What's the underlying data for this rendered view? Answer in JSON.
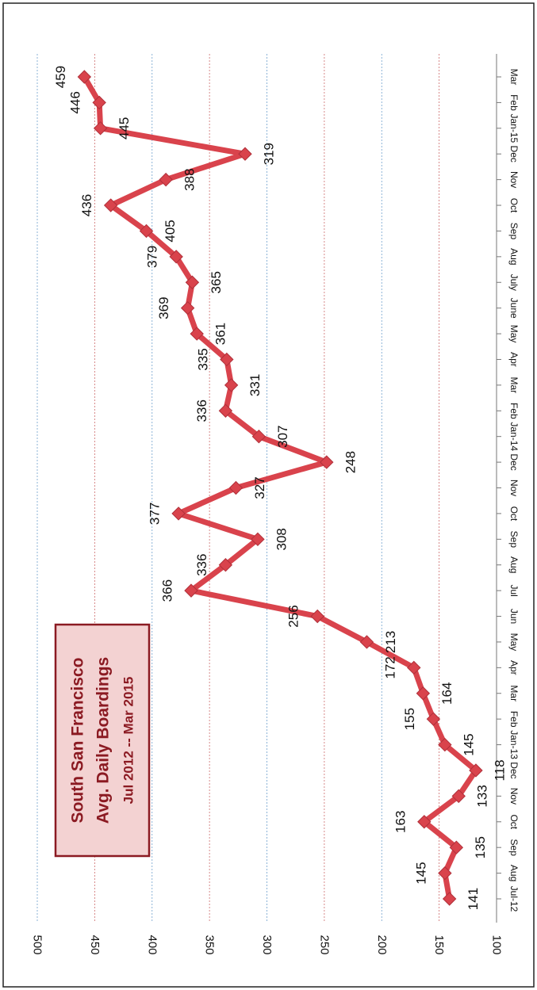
{
  "chart_data": {
    "type": "line",
    "title_lines": [
      "South San Francisco",
      "Avg. Daily Boardings",
      "Jul 2012 -- Mar 2015"
    ],
    "x": [
      "Jul-12",
      "Aug",
      "Sep",
      "Oct",
      "Nov",
      "Dec",
      "Jan-13",
      "Feb",
      "Mar",
      "Apr",
      "May",
      "Jun",
      "Jul",
      "Aug",
      "Sep",
      "Oct",
      "Nov",
      "Dec",
      "Jan-14",
      "Feb",
      "Mar",
      "Apr",
      "May",
      "June",
      "July",
      "Aug",
      "Sep",
      "Oct",
      "Nov",
      "Dec",
      "Jan-15",
      "Feb",
      "Mar"
    ],
    "series": [
      {
        "values": [
          141,
          145,
          135,
          163,
          133,
          118,
          145,
          155,
          164,
          172,
          213,
          256,
          366,
          336,
          308,
          377,
          327,
          248,
          307,
          336,
          331,
          335,
          361,
          369,
          365,
          379,
          405,
          436,
          388,
          319,
          445,
          446,
          459
        ],
        "color": "#d9434c"
      }
    ],
    "y_ticks": [
      100,
      150,
      200,
      250,
      300,
      350,
      400,
      450,
      500
    ],
    "ylim": [
      100,
      500
    ],
    "grid": true,
    "legend_position": "top-left",
    "orientation": "rotated-90-clockwise"
  },
  "colors": {
    "line": "#d9434c",
    "box_border": "#8b1a22",
    "box_fill": "#f3d2d2",
    "text": "#111111"
  }
}
